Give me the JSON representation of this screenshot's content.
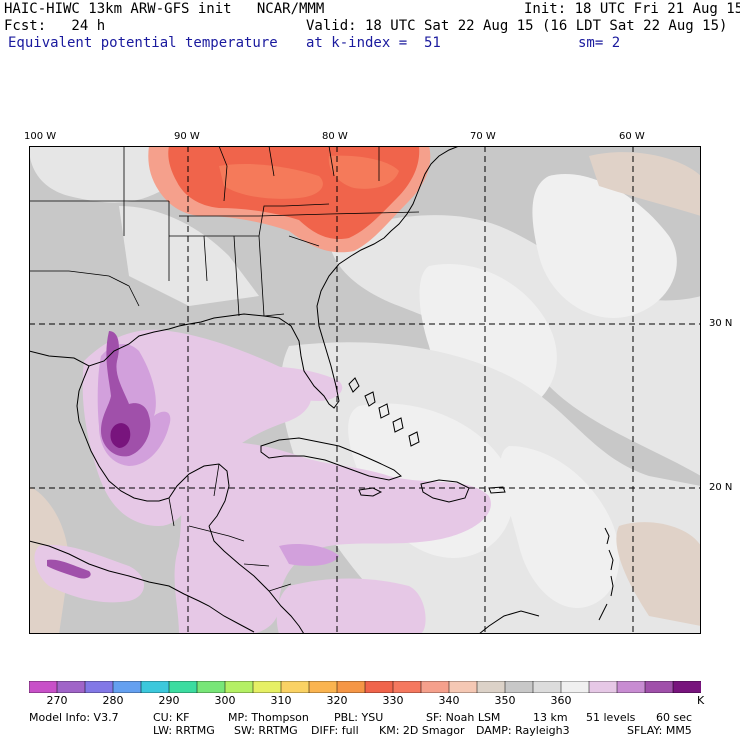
{
  "header": {
    "model_line": "HAIC-HIWC 13km ARW-GFS init   NCAR/MMM",
    "init_line": "Init: 18 UTC Fri 21 Aug 15",
    "fcst_line": "Fcst:   24 h",
    "valid_line": "Valid: 18 UTC Sat 22 Aug 15 (16 LDT Sat 22 Aug 15)",
    "field_name": "Equivalent potential temperature",
    "level_text": "at k-index =  51",
    "smooth_text": "sm= 2"
  },
  "axes": {
    "lon_labels": [
      "100 W",
      "90 W",
      "80 W",
      "70 W",
      "60 W"
    ],
    "lat_labels": [
      "30 N",
      "20 N"
    ]
  },
  "colorbar": {
    "unit": "K",
    "tick_labels": [
      "270",
      "280",
      "290",
      "300",
      "310",
      "320",
      "330",
      "340",
      "350",
      "360"
    ],
    "colors": [
      "#c850c8",
      "#a064c8",
      "#8278e6",
      "#64a0f0",
      "#3cc8dc",
      "#3cdca0",
      "#78e678",
      "#b4f064",
      "#e6f064",
      "#fad264",
      "#fab450",
      "#f59646",
      "#f0644b",
      "#f5785f",
      "#f5a08c",
      "#f5c8b4",
      "#dcd2c8",
      "#c8c8c8",
      "#dcdcdc",
      "#f0f0f0",
      "#e6c8e6",
      "#c88cd2",
      "#a050aa",
      "#78147d"
    ]
  },
  "footer": {
    "line1": [
      "Model Info: V3.7",
      "CU: KF",
      "MP: Thompson",
      "PBL: YSU",
      "SF: Noah LSM",
      "13 km",
      "51 levels",
      "60 sec"
    ],
    "line2": [
      "LW: RRTMG",
      "SW: RRTMG",
      "DIFF: full",
      "KM: 2D Smagor",
      "DAMP: Rayleigh3",
      "SFLAY: MM5"
    ]
  },
  "field_colors": {
    "background": "#c8c8c8",
    "light": "#e6e6e6",
    "white": "#f0f0f0",
    "tan": "#e0d2c8",
    "lavender": "#e6c8e6",
    "lavender_mid": "#d2a0dc",
    "purple": "#a050aa",
    "deep_purple": "#78147d",
    "salmon": "#f5a08c",
    "red": "#f0644b",
    "orange_red": "#f57a5a",
    "border": "#000000"
  }
}
